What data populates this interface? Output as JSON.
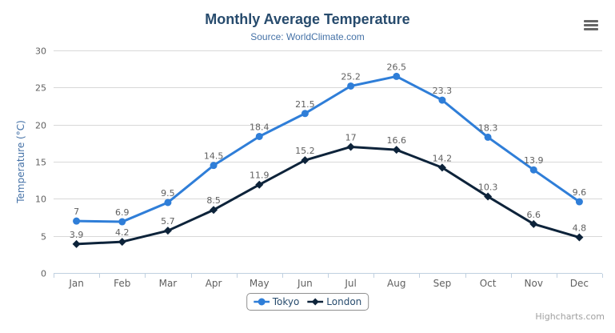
{
  "title": "Monthly Average Temperature",
  "subtitle": "Source: WorldClimate.com",
  "credits": "Highcharts.com",
  "colors": {
    "title": "#274b6d",
    "subtitle": "#4572A7",
    "grid": "#D8D8D8",
    "axis_line": "#C0D0E0",
    "tick_label": "#606060",
    "data_label": "#606060",
    "axis_title": "#4572A7",
    "tokyo": "#2f7ed8",
    "london": "#0d233a"
  },
  "chart_data": {
    "type": "line",
    "title": "Monthly Average Temperature",
    "subtitle": "Source: WorldClimate.com",
    "categories": [
      "Jan",
      "Feb",
      "Mar",
      "Apr",
      "May",
      "Jun",
      "Jul",
      "Aug",
      "Sep",
      "Oct",
      "Nov",
      "Dec"
    ],
    "series": [
      {
        "name": "Tokyo",
        "color": "#2f7ed8",
        "marker": "circle",
        "values": [
          7,
          6.9,
          9.5,
          14.5,
          18.4,
          21.5,
          25.2,
          26.5,
          23.3,
          18.3,
          13.9,
          9.6
        ]
      },
      {
        "name": "London",
        "color": "#0d233a",
        "marker": "diamond",
        "values": [
          3.9,
          4.2,
          5.7,
          8.5,
          11.9,
          15.2,
          17,
          16.6,
          14.2,
          10.3,
          6.6,
          4.8
        ]
      }
    ],
    "xlabel": "",
    "ylabel": "Temperature (°C)",
    "ylim": [
      0,
      30
    ],
    "ytick_step": 5,
    "grid": true,
    "legend_position": "bottom",
    "data_labels": true
  }
}
